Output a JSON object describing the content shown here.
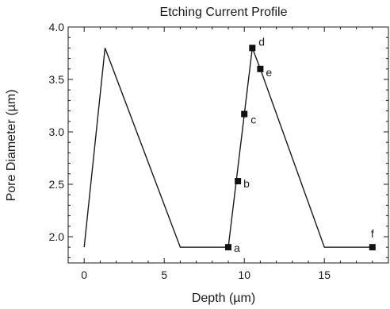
{
  "chart_data": {
    "type": "line",
    "title": "Etching Current Profile",
    "xlabel": "Depth (µm)",
    "ylabel": "Pore Diameter (µm)",
    "xlim": [
      -1,
      19
    ],
    "ylim": [
      1.75,
      4.0
    ],
    "xticks": [
      0,
      5,
      10,
      15
    ],
    "xtick_labels": [
      "0",
      "5",
      "10",
      "15"
    ],
    "yticks": [
      2.0,
      2.5,
      3.0,
      3.5,
      4.0
    ],
    "ytick_labels": [
      "2.0",
      "2.5",
      "3.0",
      "3.5",
      "4.0"
    ],
    "grid": false,
    "series": [
      {
        "x": [
          0,
          1.3,
          6,
          9,
          10.5,
          11,
          15,
          18
        ],
        "y": [
          1.9,
          3.8,
          1.9,
          1.9,
          3.8,
          3.6,
          1.9,
          1.9
        ]
      }
    ],
    "markers": [
      {
        "label": "a",
        "x": 9.0,
        "y": 1.9
      },
      {
        "label": "b",
        "x": 9.6,
        "y": 2.53
      },
      {
        "label": "c",
        "x": 10.0,
        "y": 3.17
      },
      {
        "label": "d",
        "x": 10.5,
        "y": 3.8
      },
      {
        "label": "e",
        "x": 11.0,
        "y": 3.6
      },
      {
        "label": "f",
        "x": 18.0,
        "y": 1.9
      }
    ]
  }
}
